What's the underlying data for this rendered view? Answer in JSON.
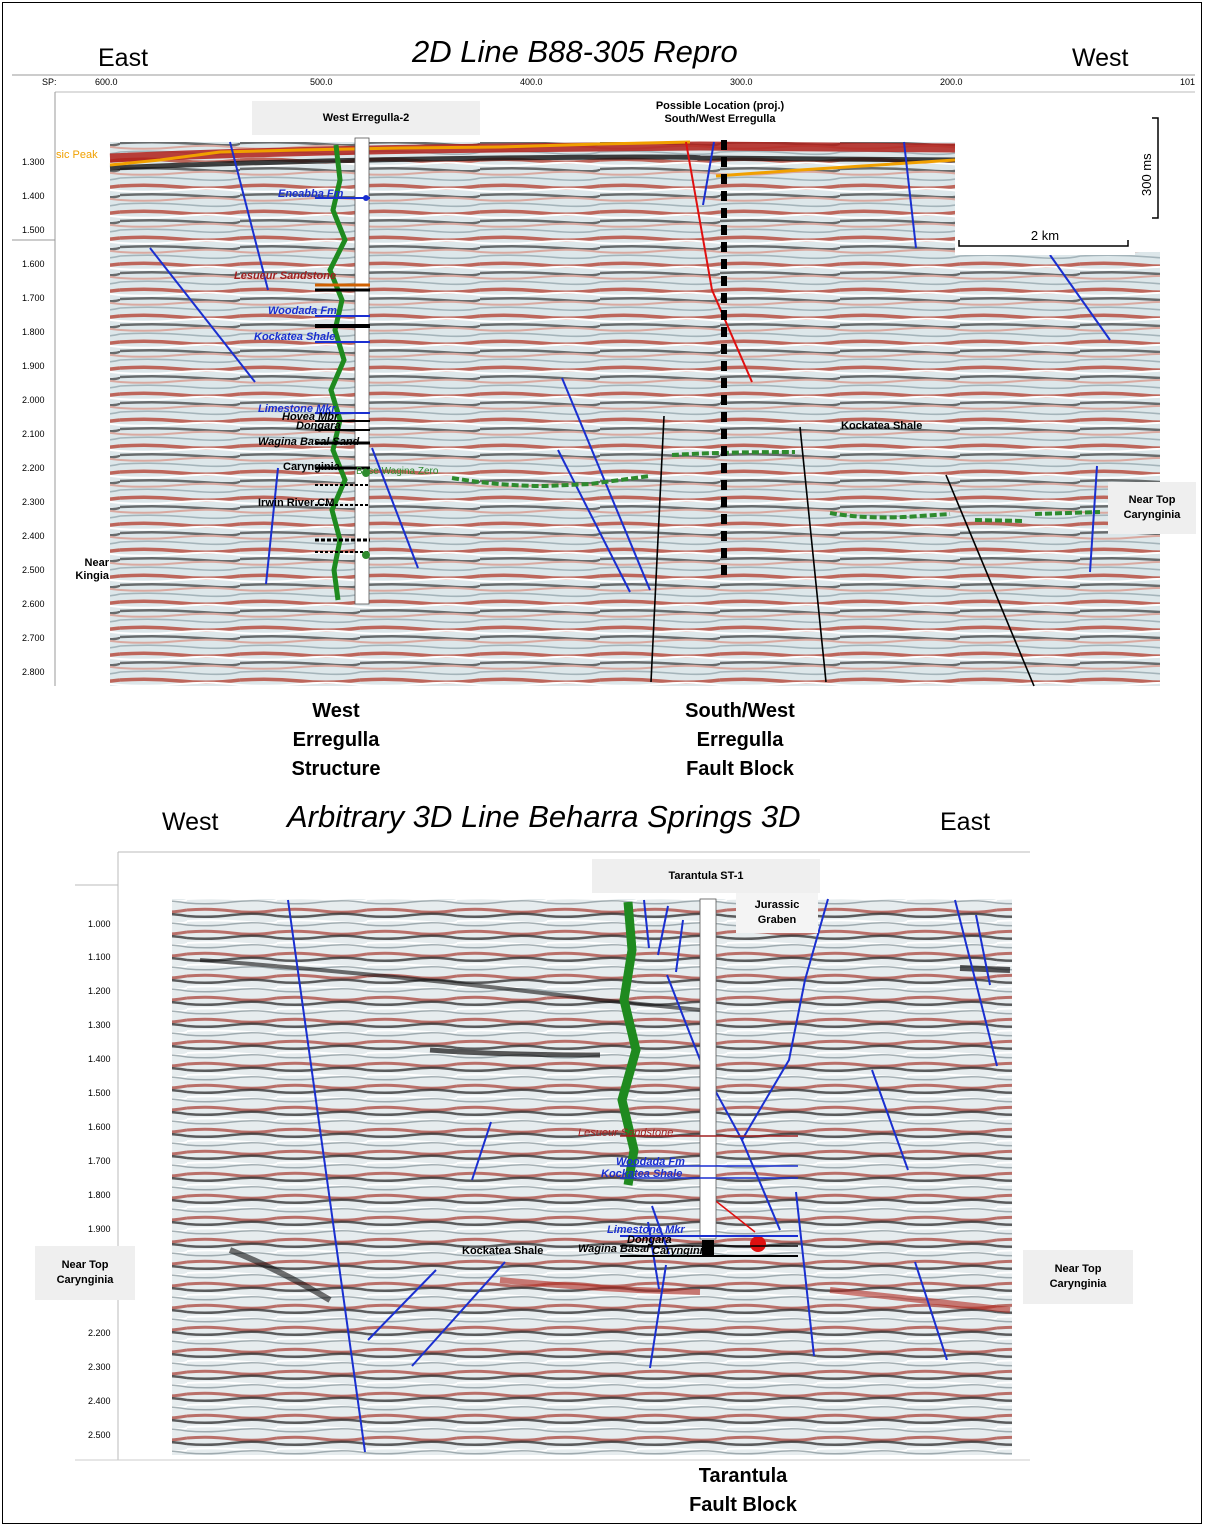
{
  "top_panel": {
    "title": "2D Line B88-305 Repro",
    "left_direction": "East",
    "right_direction": "West",
    "sp_label": "SP:",
    "sp_ticks": [
      "600.0",
      "500.0",
      "400.0",
      "300.0",
      "200.0",
      "101"
    ],
    "time_ticks": [
      "1.300",
      "1.400",
      "1.500",
      "1.600",
      "1.700",
      "1.800",
      "1.900",
      "2.000",
      "2.100",
      "2.200",
      "2.300",
      "2.400",
      "2.500",
      "2.600",
      "2.700",
      "2.800"
    ],
    "well_label": "West Erregulla-2",
    "possible_location_lines": [
      "Possible Location (proj.)",
      "South/West Erregulla"
    ],
    "scale_vertical": "300 ms",
    "scale_horizontal": "2 km",
    "horizon_left": "sic Peak",
    "formation_labels": {
      "eneabba": "Eneabba Fm",
      "lesueur": "Lesueur Sandstone",
      "woodada": "Woodada Fm",
      "kockatea": "Kockatea Shale",
      "limestone": "Limestone Mkr",
      "hovea": "Hovea Mbr",
      "dongara": "Dongara",
      "wagina": "Wagina Basal Sand",
      "carynginia": "Carynginia",
      "irwin": "Irwin River CM",
      "base_wagina": "Base Wagina Zero"
    },
    "kockatea_shale_label": "Kockatea Shale",
    "near_top_carynginia_lines": [
      "Near Top",
      "Carynginia"
    ],
    "near_kingia_lines": [
      "Near",
      "Kingia"
    ],
    "caption_left_lines": [
      "West",
      "Erregulla",
      "Structure"
    ],
    "caption_right_lines": [
      "South/West",
      "Erregulla",
      "Fault Block"
    ]
  },
  "bottom_panel": {
    "title": "Arbitrary 3D Line Beharra Springs 3D",
    "left_direction": "West",
    "right_direction": "East",
    "time_ticks": [
      "1.000",
      "1.100",
      "1.200",
      "1.300",
      "1.400",
      "1.500",
      "1.600",
      "1.700",
      "1.800",
      "1.900",
      "2.200",
      "2.300",
      "2.400",
      "2.500"
    ],
    "well_label": "Tarantula  ST-1",
    "graben_lines": [
      "Jurassic",
      "Graben"
    ],
    "formation_labels": {
      "lesueur": "Lesueur Sandstone",
      "woodada": "Woodada Fm",
      "kockatea": "Kockatea Shale",
      "limestone": "Limestone Mkr",
      "dongara": "Dongara",
      "wagina": "Wagina Basal",
      "carynginia": "Carynginia"
    },
    "kockatea_shale_label": "Kockatea Shale",
    "near_top_left_lines": [
      "Near Top",
      "Carynginia"
    ],
    "near_top_right_lines": [
      "Near Top",
      "Carynginia"
    ],
    "caption_lines": [
      "Tarantula",
      "Fault Block"
    ]
  },
  "colors": {
    "fault_blue": "#1a2fd0",
    "fault_black": "#000000",
    "fault_red": "#e01010",
    "horizon_orange": "#f0a000",
    "horizon_green": "#2e8b2e",
    "seismic_red": "#b23a2a",
    "seismic_light": "#dde7ea"
  }
}
